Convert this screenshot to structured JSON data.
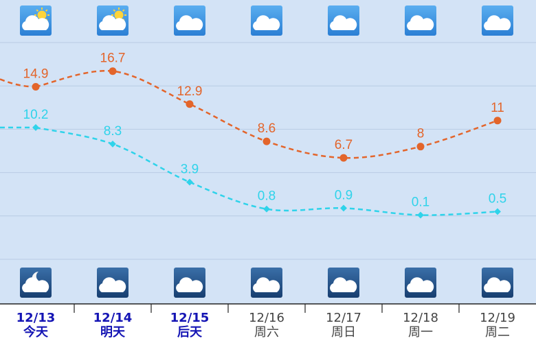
{
  "chart_data": {
    "type": "line",
    "dates": [
      "12/13",
      "12/14",
      "12/15",
      "12/16",
      "12/17",
      "12/18",
      "12/19"
    ],
    "categories": [
      "今天",
      "明天",
      "后天",
      "周六",
      "周日",
      "周一",
      "周二"
    ],
    "label_colors": [
      "#1414b4",
      "#1414b4",
      "#1414b4",
      "#444444",
      "#444444",
      "#444444",
      "#444444"
    ],
    "series": [
      {
        "name": "high",
        "color": "#e3652b",
        "marker": "circle",
        "values": [
          14.9,
          16.7,
          12.9,
          8.6,
          6.7,
          8,
          11
        ]
      },
      {
        "name": "low",
        "color": "#2fd3ea",
        "marker": "diamond",
        "values": [
          10.2,
          8.3,
          3.9,
          0.8,
          0.9,
          0.1,
          0.5
        ]
      }
    ],
    "ylim": [
      -5,
      20
    ],
    "yticks": [
      -5,
      0,
      5,
      10,
      15,
      20
    ],
    "grid": true,
    "line_style": "dashed"
  }
}
